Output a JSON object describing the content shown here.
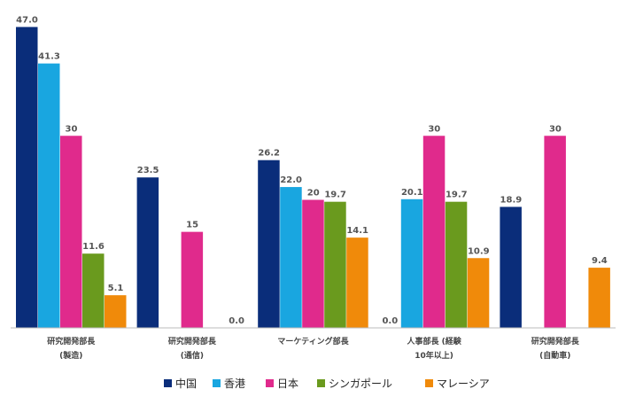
{
  "chart_data": {
    "type": "bar",
    "categories": [
      [
        "研究開発部長",
        "(製造)"
      ],
      [
        "研究開発部長",
        "(通信)"
      ],
      [
        "マーケティング部長"
      ],
      [
        "人事部長 (経験",
        "10年以上)"
      ],
      [
        "研究開発部長",
        "(自動車)"
      ]
    ],
    "series": [
      {
        "name": "中国",
        "color": "#0a2d7a",
        "values": [
          47.0,
          23.5,
          26.2,
          0.0,
          18.9
        ],
        "labels": [
          "47.0",
          "23.5",
          "26.2",
          "0.0",
          "18.9"
        ]
      },
      {
        "name": "香港",
        "color": "#19a6e0",
        "values": [
          41.3,
          null,
          22.0,
          20.1,
          null
        ],
        "labels": [
          "41.3",
          "",
          "22.0",
          "20.1",
          ""
        ]
      },
      {
        "name": "日本",
        "color": "#e02a8c",
        "values": [
          30,
          15,
          20,
          30,
          30
        ],
        "labels": [
          "30",
          "15",
          "20",
          "30",
          "30"
        ]
      },
      {
        "name": "シンガポール",
        "color": "#6a9a1e",
        "values": [
          11.6,
          null,
          19.7,
          19.7,
          null
        ],
        "labels": [
          "11.6",
          "",
          "19.7",
          "19.7",
          ""
        ]
      },
      {
        "name": "マレーシア",
        "color": "#f08a0a",
        "values": [
          5.1,
          0.0,
          14.1,
          10.9,
          9.4
        ],
        "labels": [
          "5.1",
          "0.0",
          "14.1",
          "10.9",
          "9.4"
        ]
      }
    ],
    "ylim": [
      0,
      49
    ],
    "legend_position": "bottom",
    "grid": false
  }
}
